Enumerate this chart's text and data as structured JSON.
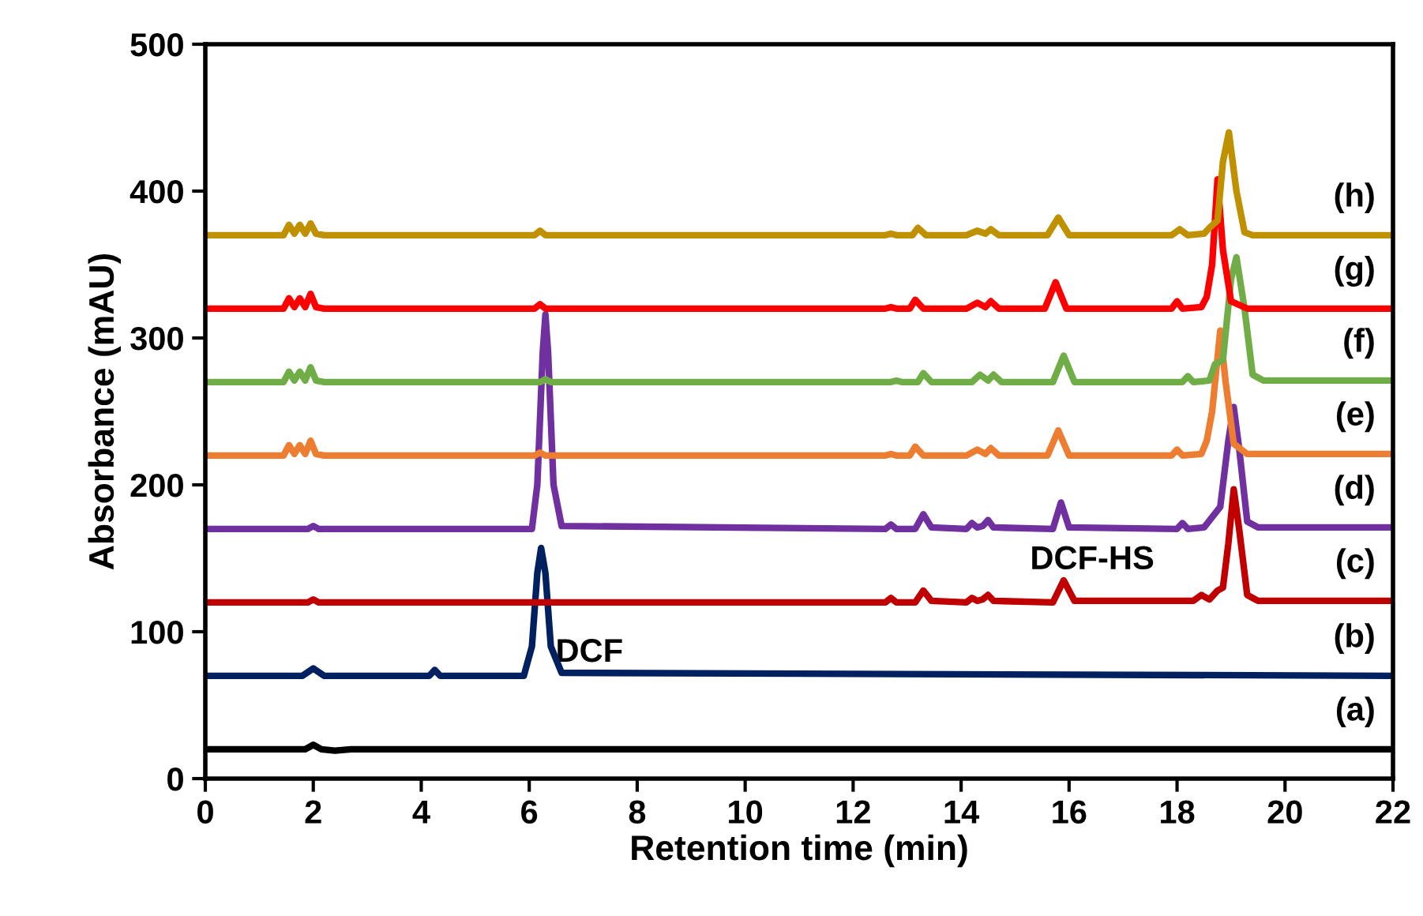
{
  "chart_data": {
    "type": "line",
    "xlabel": "Retention time (min)",
    "ylabel": "Absorbance (mAU)",
    "xlim": [
      0,
      22
    ],
    "ylim": [
      0,
      500
    ],
    "xticks": [
      0,
      2,
      4,
      6,
      8,
      10,
      12,
      14,
      16,
      18,
      20,
      22
    ],
    "yticks": [
      0,
      100,
      200,
      300,
      400,
      500
    ],
    "grid": false,
    "legend": false,
    "marker": "none",
    "line_style": "solid",
    "annotations": [
      {
        "text": "DCF",
        "x": 6.22,
        "y": 157
      },
      {
        "text": "DCF-HS",
        "x": 15.9,
        "y": 135
      }
    ],
    "series": [
      {
        "name": "(a)",
        "color": "#000000",
        "x": [
          0,
          1.85,
          2.0,
          2.15,
          2.4,
          2.7,
          3.0,
          22
        ],
        "values": [
          20,
          20,
          23,
          20,
          19,
          20,
          20,
          20
        ]
      },
      {
        "name": "(b)",
        "color": "#002060",
        "x": [
          0,
          1.8,
          2.0,
          2.2,
          3.7,
          4.15,
          4.25,
          4.35,
          5.9,
          6.05,
          6.15,
          6.22,
          6.3,
          6.4,
          6.6,
          22
        ],
        "values": [
          70,
          70,
          75,
          70,
          70,
          70,
          74,
          70,
          70,
          90,
          140,
          157,
          140,
          90,
          72,
          70
        ]
      },
      {
        "name": "(c)",
        "color": "#c00000",
        "x": [
          0,
          1.9,
          2.0,
          2.1,
          12.6,
          12.7,
          12.8,
          13.15,
          13.3,
          13.45,
          14.1,
          14.2,
          14.3,
          14.4,
          14.5,
          14.6,
          15.7,
          15.9,
          16.1,
          18.3,
          18.45,
          18.6,
          18.75,
          18.85,
          18.95,
          19.05,
          19.15,
          19.3,
          19.5,
          22
        ],
        "values": [
          120,
          120,
          122,
          120,
          120,
          123,
          120,
          120,
          128,
          121,
          120,
          123,
          121,
          122,
          125,
          121,
          120,
          135,
          121,
          121,
          125,
          122,
          128,
          130,
          160,
          197,
          170,
          125,
          121,
          121
        ]
      },
      {
        "name": "(d)",
        "color": "#7030a0",
        "x": [
          0,
          1.9,
          2.0,
          2.1,
          6.05,
          6.15,
          6.25,
          6.3,
          6.35,
          6.45,
          6.6,
          12.6,
          12.7,
          12.8,
          13.15,
          13.3,
          13.45,
          14.1,
          14.2,
          14.3,
          14.4,
          14.5,
          14.6,
          15.7,
          15.85,
          16.0,
          18.0,
          18.1,
          18.2,
          18.5,
          18.65,
          18.8,
          18.95,
          19.05,
          19.15,
          19.3,
          19.5,
          22
        ],
        "values": [
          170,
          170,
          172,
          170,
          170,
          200,
          290,
          316,
          290,
          200,
          172,
          170,
          173,
          170,
          170,
          180,
          171,
          170,
          174,
          171,
          172,
          176,
          171,
          170,
          188,
          171,
          170,
          174,
          170,
          171,
          178,
          185,
          230,
          253,
          225,
          175,
          171,
          171
        ]
      },
      {
        "name": "(e)",
        "color": "#ed7d31",
        "x": [
          0,
          1.45,
          1.55,
          1.65,
          1.75,
          1.85,
          1.95,
          2.05,
          2.2,
          2.6,
          6.1,
          6.2,
          6.3,
          12.6,
          12.7,
          12.8,
          13.05,
          13.15,
          13.3,
          14.1,
          14.3,
          14.45,
          14.55,
          14.7,
          15.6,
          15.8,
          16.0,
          17.9,
          18.0,
          18.1,
          18.45,
          18.55,
          18.65,
          18.8,
          18.9,
          19.05,
          19.3,
          22
        ],
        "values": [
          220,
          220,
          227,
          221,
          227,
          221,
          230,
          221,
          220,
          220,
          220,
          222,
          220,
          220,
          221,
          220,
          220,
          226,
          220,
          220,
          224,
          221,
          225,
          220,
          220,
          237,
          220,
          220,
          224,
          220,
          221,
          230,
          250,
          305,
          270,
          228,
          221,
          221
        ]
      },
      {
        "name": "(f)",
        "color": "#70ad47",
        "x": [
          0,
          1.45,
          1.55,
          1.65,
          1.75,
          1.85,
          1.95,
          2.05,
          2.2,
          2.6,
          6.2,
          6.3,
          6.4,
          12.7,
          12.8,
          12.9,
          13.2,
          13.3,
          13.45,
          14.2,
          14.35,
          14.5,
          14.6,
          14.75,
          15.7,
          15.9,
          16.1,
          18.1,
          18.2,
          18.3,
          18.6,
          18.7,
          18.85,
          19.0,
          19.1,
          19.25,
          19.4,
          19.6,
          22
        ],
        "values": [
          270,
          270,
          277,
          271,
          277,
          271,
          280,
          271,
          270,
          270,
          270,
          272,
          270,
          270,
          271,
          270,
          270,
          276,
          270,
          270,
          275,
          271,
          275,
          270,
          270,
          288,
          270,
          270,
          274,
          270,
          271,
          282,
          285,
          340,
          355,
          320,
          275,
          271,
          271
        ]
      },
      {
        "name": "(g)",
        "color": "#ff0000",
        "x": [
          0,
          1.45,
          1.55,
          1.65,
          1.75,
          1.85,
          1.95,
          2.05,
          2.2,
          2.6,
          6.1,
          6.2,
          6.3,
          12.6,
          12.7,
          12.8,
          13.05,
          13.15,
          13.3,
          14.1,
          14.3,
          14.45,
          14.55,
          14.7,
          15.55,
          15.75,
          15.95,
          17.9,
          18.0,
          18.1,
          18.45,
          18.55,
          18.65,
          18.75,
          18.85,
          19.0,
          19.3,
          22
        ],
        "values": [
          320,
          320,
          327,
          321,
          327,
          321,
          330,
          321,
          320,
          320,
          320,
          323,
          320,
          320,
          321,
          320,
          320,
          326,
          320,
          320,
          324,
          321,
          325,
          320,
          320,
          338,
          320,
          320,
          325,
          320,
          321,
          328,
          350,
          408,
          360,
          325,
          320,
          320
        ]
      },
      {
        "name": "(h)",
        "color": "#bf9000",
        "x": [
          0,
          1.45,
          1.55,
          1.65,
          1.75,
          1.85,
          1.95,
          2.05,
          2.2,
          2.6,
          6.1,
          6.2,
          6.3,
          12.6,
          12.7,
          12.8,
          13.1,
          13.2,
          13.35,
          14.1,
          14.3,
          14.45,
          14.55,
          14.7,
          15.6,
          15.8,
          16.0,
          17.9,
          18.05,
          18.2,
          18.5,
          18.6,
          18.75,
          18.85,
          18.96,
          19.1,
          19.25,
          19.4,
          22
        ],
        "values": [
          370,
          370,
          377,
          371,
          377,
          371,
          378,
          371,
          370,
          370,
          370,
          373,
          370,
          370,
          371,
          370,
          370,
          375,
          370,
          370,
          373,
          371,
          374,
          370,
          370,
          382,
          370,
          370,
          374,
          370,
          371,
          375,
          380,
          420,
          440,
          400,
          372,
          370,
          370
        ]
      }
    ]
  }
}
